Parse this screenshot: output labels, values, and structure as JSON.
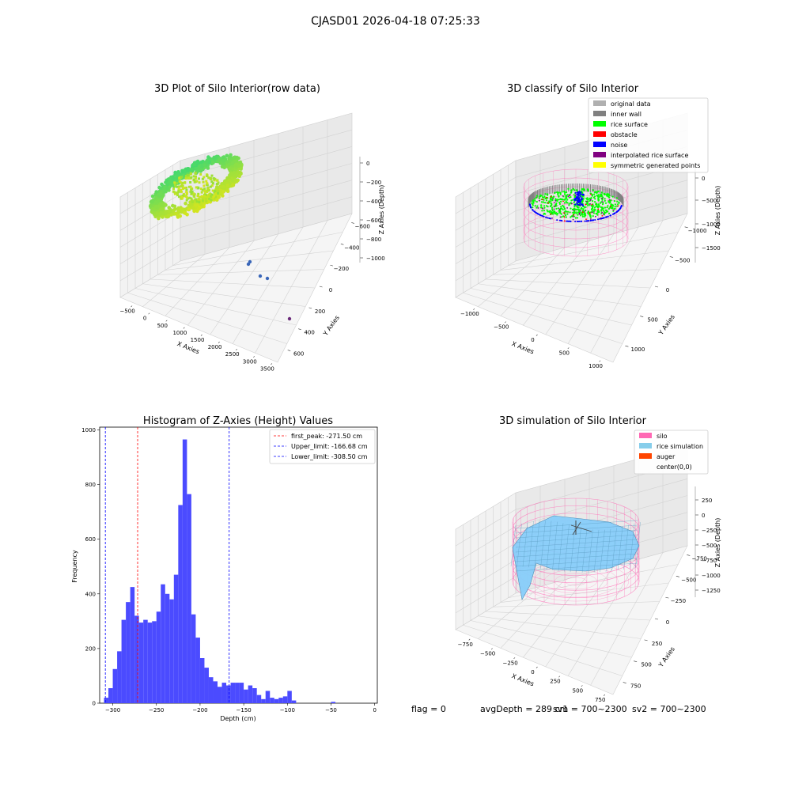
{
  "figure": {
    "suptitle": "CJASD01 2026-04-18 07:25:33",
    "status": {
      "flag": "flag = 0",
      "avg_depth": "avgDepth = 289 cm",
      "sv1": "sv1 = 700~2300",
      "sv2": "sv2 = 700~2300"
    }
  },
  "colors": {
    "rice_gradient": [
      "#44d96e",
      "#8fe03a",
      "#d7e51d"
    ],
    "noise_blue": "#3a66b8",
    "purple": "#6a2a7a",
    "pink": "#ff69b4",
    "rice_surface_green": "#00ff00",
    "inner_wall_gray": "#808080",
    "original_gray": "#b0b0b0",
    "noise": "#0000ff",
    "obstacle": "#ff0000",
    "interp": "#800080",
    "symmetric": "#ffff00",
    "sim_rice": "#87cefa",
    "auger": "#ff4500",
    "hist_bar": "#4b4bff"
  },
  "chart_data": [
    {
      "type": "scatter3d",
      "title": "3D Plot of Silo Interior(row data)",
      "xlabel": "X Axies",
      "ylabel": "Y Axies",
      "zlabel": "Z Axies (Depth)",
      "xticks": [
        "−500",
        "0",
        "500",
        "1000",
        "1500",
        "2000",
        "2500",
        "3000",
        "3500"
      ],
      "yticks": [
        "600",
        "400",
        "200",
        "0",
        "−200",
        "−400",
        "−600"
      ],
      "zticks": [
        "0",
        "−200",
        "−400",
        "−600",
        "−800",
        "−1000"
      ],
      "outliers": [
        {
          "x": 2250,
          "y": -60,
          "z": -760
        },
        {
          "x": 2300,
          "y": -70,
          "z": -780
        },
        {
          "x": 2550,
          "y": -250,
          "z": -860
        },
        {
          "x": 2700,
          "y": -250,
          "z": -870
        },
        {
          "x": 3450,
          "y": -520,
          "z": -1010
        }
      ]
    },
    {
      "type": "scatter3d",
      "title": "3D classify of Silo Interior",
      "xlabel": "X Axies",
      "ylabel": "Y Axies",
      "zlabel": "Z Axies (Depth)",
      "xticks": [
        "−1000",
        "−500",
        "0",
        "500",
        "1000"
      ],
      "yticks": [
        "1000",
        "500",
        "0",
        "−500",
        "−1000"
      ],
      "zticks": [
        "0",
        "−500",
        "−1000",
        "−1500"
      ],
      "legend": [
        {
          "label": "original data",
          "color": "#b0b0b0"
        },
        {
          "label": "inner wall",
          "color": "#808080"
        },
        {
          "label": "rice surface",
          "color": "#00ff00"
        },
        {
          "label": "obstacle",
          "color": "#ff0000"
        },
        {
          "label": "noise",
          "color": "#0000ff"
        },
        {
          "label": "interpolated rice surface",
          "color": "#800080"
        },
        {
          "label": "symmetric generated points",
          "color": "#ffff00"
        }
      ],
      "legend_loc": "upper right"
    },
    {
      "type": "bar",
      "title": "Histogram of Z-Axies (Height) Values",
      "xlabel": "Depth (cm)",
      "ylabel": "Frequency",
      "xlim": [
        -315,
        3
      ],
      "ylim": [
        0,
        1010
      ],
      "xticks": [
        -300,
        -250,
        -200,
        -150,
        -100,
        -50,
        0
      ],
      "yticks": [
        0,
        200,
        400,
        600,
        800,
        1000
      ],
      "bin_start": -310,
      "bin_width": 5,
      "values": [
        20,
        55,
        125,
        190,
        305,
        370,
        425,
        320,
        295,
        305,
        295,
        300,
        335,
        435,
        400,
        380,
        470,
        725,
        965,
        765,
        325,
        240,
        165,
        130,
        95,
        80,
        60,
        75,
        65,
        75,
        75,
        75,
        50,
        65,
        55,
        30,
        15,
        45,
        20,
        15,
        20,
        25,
        45,
        10,
        0,
        0,
        0,
        0,
        0,
        0,
        0,
        0,
        5
      ],
      "lines": [
        {
          "label": "first_peak: -271.50 cm",
          "x": -271.5,
          "color": "#ff0000"
        },
        {
          "label": "Upper_limit: -166.68 cm",
          "x": -166.68,
          "color": "#0000ff"
        },
        {
          "label": "Lower_limit: -308.50 cm",
          "x": -308.5,
          "color": "#0000ff"
        }
      ],
      "legend_loc": "upper right"
    },
    {
      "type": "surface3d",
      "title": "3D simulation of Silo Interior",
      "xlabel": "X Axies",
      "ylabel": "Y Axies",
      "zlabel": "Z Axies (Depth)",
      "xticks": [
        "−750",
        "−500",
        "−250",
        "0",
        "250",
        "500",
        "750"
      ],
      "yticks": [
        "750",
        "500",
        "250",
        "0",
        "−250",
        "−500",
        "−750"
      ],
      "zticks": [
        "250",
        "0",
        "−250",
        "−500",
        "−750",
        "−1000",
        "−1250"
      ],
      "legend": [
        {
          "label": "silo",
          "color": "#ff69b4"
        },
        {
          "label": "rice simulation",
          "color": "#87ceeb"
        },
        {
          "label": "auger",
          "color": "#ff4500"
        },
        {
          "label": "center(0,0)",
          "color": ""
        }
      ],
      "legend_loc": "upper right"
    }
  ]
}
